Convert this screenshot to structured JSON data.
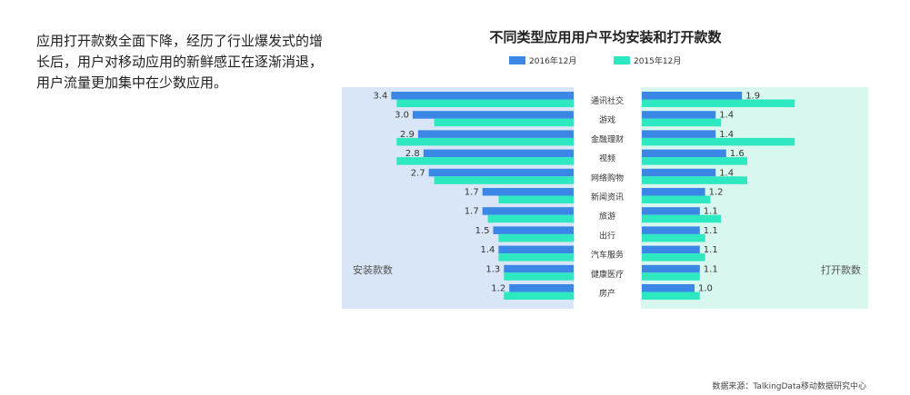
{
  "text": {
    "description": "应用打开款数全面下降，经历了行业爆发式的增长后，用户对移动应用的新鲜感正在逐渐消退，用户流量更加集中在少数应用。",
    "source": "数据来源：TalkingData移动数据研究中心"
  },
  "colors": {
    "series_2016": "#3a87e6",
    "series_2015": "#2de8c0",
    "left_panel": "#d8e6f8",
    "right_panel": "#d8f7ee",
    "panel_label": "#555555"
  },
  "chart_data": {
    "type": "bar",
    "title": "不同类型应用用户平均安装和打开款数",
    "legend": [
      "2016年12月",
      "2015年12月"
    ],
    "legend_position": "top",
    "categories": [
      "通讯社交",
      "游戏",
      "金融理财",
      "视频",
      "网络购物",
      "新闻资讯",
      "旅游",
      "出行",
      "汽车服务",
      "健康医疗",
      "房产"
    ],
    "panels": [
      {
        "label": "安装款数",
        "direction": "left",
        "series": [
          {
            "name": "2016年12月",
            "values": [
              3.4,
              3.0,
              2.9,
              2.8,
              2.7,
              1.7,
              1.7,
              1.5,
              1.4,
              1.3,
              1.2
            ]
          },
          {
            "name": "2015年12月",
            "values": [
              3.3,
              2.6,
              3.3,
              3.3,
              2.6,
              1.4,
              1.6,
              1.4,
              1.4,
              1.3,
              1.3
            ]
          }
        ]
      },
      {
        "label": "打开款数",
        "direction": "right",
        "series": [
          {
            "name": "2016年12月",
            "values": [
              1.9,
              1.4,
              1.4,
              1.6,
              1.4,
              1.2,
              1.1,
              1.1,
              1.1,
              1.1,
              1.0
            ]
          },
          {
            "name": "2015年12月",
            "values": [
              2.9,
              1.5,
              2.9,
              2.0,
              2.0,
              1.3,
              1.5,
              1.2,
              1.2,
              1.1,
              1.1
            ]
          }
        ]
      }
    ],
    "data_labels": "2016年12月",
    "grid": false
  }
}
